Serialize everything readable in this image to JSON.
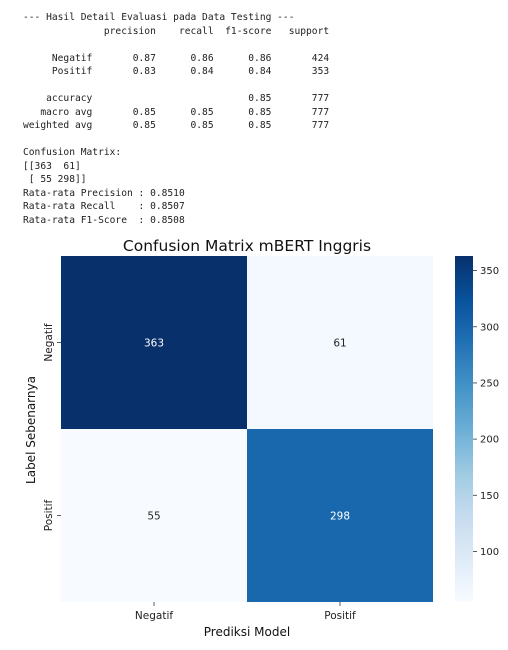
{
  "console": {
    "lines": [
      "--- Hasil Detail Evaluasi pada Data Testing ---",
      "              precision    recall  f1-score   support",
      "",
      "     Negatif       0.87      0.86      0.86       424",
      "     Positif       0.83      0.84      0.84       353",
      "",
      "    accuracy                           0.85       777",
      "   macro avg       0.85      0.85      0.85       777",
      "weighted avg       0.85      0.85      0.85       777",
      "",
      "Confusion Matrix:",
      "[[363  61]",
      " [ 55 298]]",
      "Rata-rata Precision : 0.8510",
      "Rata-rata Recall    : 0.8507",
      "Rata-rata F1-Score  : 0.8508"
    ]
  },
  "chart_data": {
    "type": "heatmap",
    "title": "Confusion Matrix mBERT Inggris",
    "xlabel": "Prediksi Model",
    "ylabel": "Label Sebenarnya",
    "x_categories": [
      "Negatif",
      "Positif"
    ],
    "y_categories": [
      "Negatif",
      "Positif"
    ],
    "values": [
      [
        363,
        61
      ],
      [
        55,
        298
      ]
    ],
    "colormap": "Blues",
    "colorbar": {
      "range": [
        55,
        363
      ],
      "ticks": [
        100,
        150,
        200,
        250,
        300,
        350
      ]
    },
    "grid": false
  }
}
